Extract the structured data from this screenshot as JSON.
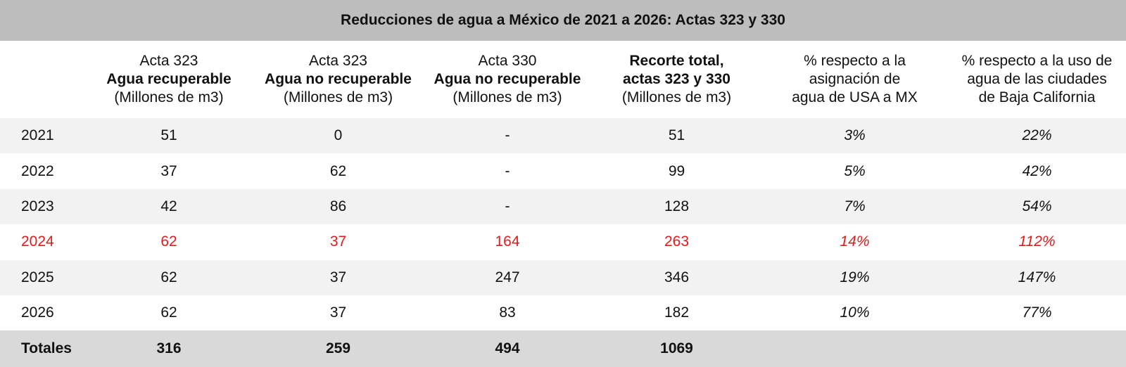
{
  "chart_data": {
    "type": "table",
    "title": "Reducciones de agua a México de 2021 a 2026: Actas 323 y 330",
    "columns": [
      {
        "line1": "",
        "line2": "",
        "line3": ""
      },
      {
        "line1": "Acta 323",
        "line2": "Agua recuperable",
        "line3": "(Millones de m3)"
      },
      {
        "line1": "Acta 323",
        "line2": "Agua no recuperable",
        "line3": "(Millones de m3)"
      },
      {
        "line1": "Acta 330",
        "line2": "Agua no recuperable",
        "line3": "(Millones de m3)"
      },
      {
        "line1": "Recorte total,",
        "line2": "actas 323 y 330",
        "line3": "(Millones de m3)"
      },
      {
        "line1": "% respecto a la",
        "line2": "asignación de",
        "line3": "agua de USA a MX"
      },
      {
        "line1": "% respecto a la uso de",
        "line2": "agua de las ciudades",
        "line3": "de Baja California"
      }
    ],
    "rows": [
      {
        "year": "2021",
        "acta323_recuperable": "51",
        "acta323_no_recuperable": "0",
        "acta330_no_recuperable": "-",
        "recorte_total": "51",
        "pct_asignacion": "3%",
        "pct_baja_california": "22%",
        "highlight": false
      },
      {
        "year": "2022",
        "acta323_recuperable": "37",
        "acta323_no_recuperable": "62",
        "acta330_no_recuperable": "-",
        "recorte_total": "99",
        "pct_asignacion": "5%",
        "pct_baja_california": "42%",
        "highlight": false
      },
      {
        "year": "2023",
        "acta323_recuperable": "42",
        "acta323_no_recuperable": "86",
        "acta330_no_recuperable": "-",
        "recorte_total": "128",
        "pct_asignacion": "7%",
        "pct_baja_california": "54%",
        "highlight": false
      },
      {
        "year": "2024",
        "acta323_recuperable": "62",
        "acta323_no_recuperable": "37",
        "acta330_no_recuperable": "164",
        "recorte_total": "263",
        "pct_asignacion": "14%",
        "pct_baja_california": "112%",
        "highlight": true
      },
      {
        "year": "2025",
        "acta323_recuperable": "62",
        "acta323_no_recuperable": "37",
        "acta330_no_recuperable": "247",
        "recorte_total": "346",
        "pct_asignacion": "19%",
        "pct_baja_california": "147%",
        "highlight": false
      },
      {
        "year": "2026",
        "acta323_recuperable": "62",
        "acta323_no_recuperable": "37",
        "acta330_no_recuperable": "83",
        "recorte_total": "182",
        "pct_asignacion": "10%",
        "pct_baja_california": "77%",
        "highlight": false
      }
    ],
    "totals": {
      "label": "Totales",
      "acta323_recuperable": "316",
      "acta323_no_recuperable": "259",
      "acta330_no_recuperable": "494",
      "recorte_total": "1069"
    },
    "colors": {
      "title_bg": "#bdbdbd",
      "stripe": "#f2f2f2",
      "highlight_text": "#e01b1b",
      "totals_bg": "#d9d9d9"
    }
  }
}
